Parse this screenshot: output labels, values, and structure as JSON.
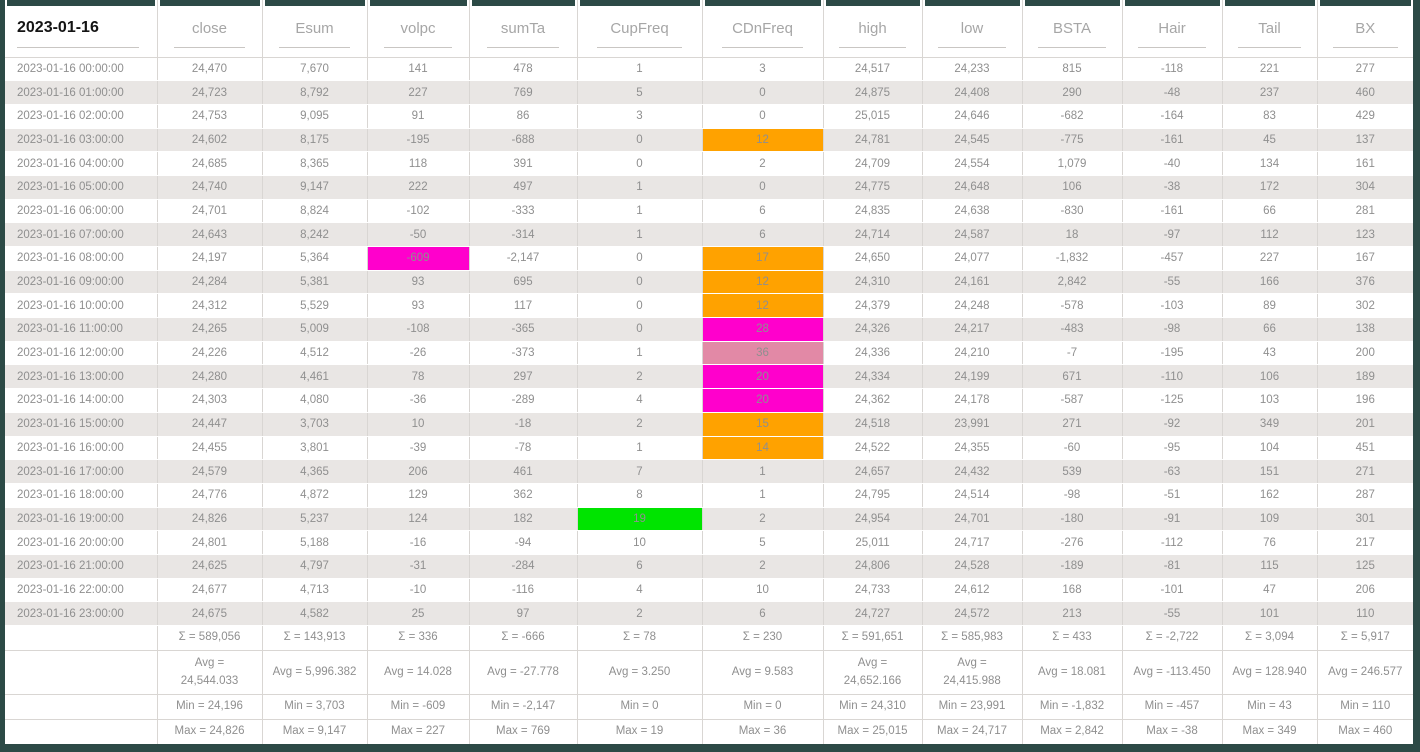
{
  "table": {
    "date_header": "2023-01-16",
    "columns": [
      "close",
      "Esum",
      "volpc",
      "sumTa",
      "CupFreq",
      "CDnFreq",
      "high",
      "low",
      "BSTA",
      "Hair",
      "Tail",
      "BX"
    ],
    "rows": [
      {
        "time": "2023-01-16 00:00:00",
        "cells": [
          "24,470",
          "7,670",
          "141",
          "478",
          "1",
          "3",
          "24,517",
          "24,233",
          "815",
          "-118",
          "221",
          "277"
        ]
      },
      {
        "time": "2023-01-16 01:00:00",
        "cells": [
          "24,723",
          "8,792",
          "227",
          "769",
          "5",
          "0",
          "24,875",
          "24,408",
          "290",
          "-48",
          "237",
          "460"
        ]
      },
      {
        "time": "2023-01-16 02:00:00",
        "cells": [
          "24,753",
          "9,095",
          "91",
          "86",
          "3",
          "0",
          "25,015",
          "24,646",
          "-682",
          "-164",
          "83",
          "429"
        ]
      },
      {
        "time": "2023-01-16 03:00:00",
        "cells": [
          "24,602",
          "8,175",
          "-195",
          "-688",
          "0",
          "12",
          "24,781",
          "24,545",
          "-775",
          "-161",
          "45",
          "137"
        ],
        "highlights": {
          "5": "orange"
        }
      },
      {
        "time": "2023-01-16 04:00:00",
        "cells": [
          "24,685",
          "8,365",
          "118",
          "391",
          "0",
          "2",
          "24,709",
          "24,554",
          "1,079",
          "-40",
          "134",
          "161"
        ]
      },
      {
        "time": "2023-01-16 05:00:00",
        "cells": [
          "24,740",
          "9,147",
          "222",
          "497",
          "1",
          "0",
          "24,775",
          "24,648",
          "106",
          "-38",
          "172",
          "304"
        ]
      },
      {
        "time": "2023-01-16 06:00:00",
        "cells": [
          "24,701",
          "8,824",
          "-102",
          "-333",
          "1",
          "6",
          "24,835",
          "24,638",
          "-830",
          "-161",
          "66",
          "281"
        ]
      },
      {
        "time": "2023-01-16 07:00:00",
        "cells": [
          "24,643",
          "8,242",
          "-50",
          "-314",
          "1",
          "6",
          "24,714",
          "24,587",
          "18",
          "-97",
          "112",
          "123"
        ]
      },
      {
        "time": "2023-01-16 08:00:00",
        "cells": [
          "24,197",
          "5,364",
          "-609",
          "-2,147",
          "0",
          "17",
          "24,650",
          "24,077",
          "-1,832",
          "-457",
          "227",
          "167"
        ],
        "highlights": {
          "2": "magenta",
          "5": "orange"
        }
      },
      {
        "time": "2023-01-16 09:00:00",
        "cells": [
          "24,284",
          "5,381",
          "93",
          "695",
          "0",
          "12",
          "24,310",
          "24,161",
          "2,842",
          "-55",
          "166",
          "376"
        ],
        "highlights": {
          "5": "orange"
        }
      },
      {
        "time": "2023-01-16 10:00:00",
        "cells": [
          "24,312",
          "5,529",
          "93",
          "117",
          "0",
          "12",
          "24,379",
          "24,248",
          "-578",
          "-103",
          "89",
          "302"
        ],
        "highlights": {
          "5": "orange"
        }
      },
      {
        "time": "2023-01-16 11:00:00",
        "cells": [
          "24,265",
          "5,009",
          "-108",
          "-365",
          "0",
          "28",
          "24,326",
          "24,217",
          "-483",
          "-98",
          "66",
          "138"
        ],
        "highlights": {
          "5": "magenta"
        }
      },
      {
        "time": "2023-01-16 12:00:00",
        "cells": [
          "24,226",
          "4,512",
          "-26",
          "-373",
          "1",
          "36",
          "24,336",
          "24,210",
          "-7",
          "-195",
          "43",
          "200"
        ],
        "highlights": {
          "5": "pink"
        }
      },
      {
        "time": "2023-01-16 13:00:00",
        "cells": [
          "24,280",
          "4,461",
          "78",
          "297",
          "2",
          "20",
          "24,334",
          "24,199",
          "671",
          "-110",
          "106",
          "189"
        ],
        "highlights": {
          "5": "magenta"
        }
      },
      {
        "time": "2023-01-16 14:00:00",
        "cells": [
          "24,303",
          "4,080",
          "-36",
          "-289",
          "4",
          "20",
          "24,362",
          "24,178",
          "-587",
          "-125",
          "103",
          "196"
        ],
        "highlights": {
          "5": "magenta"
        }
      },
      {
        "time": "2023-01-16 15:00:00",
        "cells": [
          "24,447",
          "3,703",
          "10",
          "-18",
          "2",
          "15",
          "24,518",
          "23,991",
          "271",
          "-92",
          "349",
          "201"
        ],
        "highlights": {
          "5": "orange"
        }
      },
      {
        "time": "2023-01-16 16:00:00",
        "cells": [
          "24,455",
          "3,801",
          "-39",
          "-78",
          "1",
          "14",
          "24,522",
          "24,355",
          "-60",
          "-95",
          "104",
          "451"
        ],
        "highlights": {
          "5": "orange"
        }
      },
      {
        "time": "2023-01-16 17:00:00",
        "cells": [
          "24,579",
          "4,365",
          "206",
          "461",
          "7",
          "1",
          "24,657",
          "24,432",
          "539",
          "-63",
          "151",
          "271"
        ]
      },
      {
        "time": "2023-01-16 18:00:00",
        "cells": [
          "24,776",
          "4,872",
          "129",
          "362",
          "8",
          "1",
          "24,795",
          "24,514",
          "-98",
          "-51",
          "162",
          "287"
        ]
      },
      {
        "time": "2023-01-16 19:00:00",
        "cells": [
          "24,826",
          "5,237",
          "124",
          "182",
          "19",
          "2",
          "24,954",
          "24,701",
          "-180",
          "-91",
          "109",
          "301"
        ],
        "highlights": {
          "4": "green"
        }
      },
      {
        "time": "2023-01-16 20:00:00",
        "cells": [
          "24,801",
          "5,188",
          "-16",
          "-94",
          "10",
          "5",
          "25,011",
          "24,717",
          "-276",
          "-112",
          "76",
          "217"
        ]
      },
      {
        "time": "2023-01-16 21:00:00",
        "cells": [
          "24,625",
          "4,797",
          "-31",
          "-284",
          "6",
          "2",
          "24,806",
          "24,528",
          "-189",
          "-81",
          "115",
          "125"
        ]
      },
      {
        "time": "2023-01-16 22:00:00",
        "cells": [
          "24,677",
          "4,713",
          "-10",
          "-116",
          "4",
          "10",
          "24,733",
          "24,612",
          "168",
          "-101",
          "47",
          "206"
        ]
      },
      {
        "time": "2023-01-16 23:00:00",
        "cells": [
          "24,675",
          "4,582",
          "25",
          "97",
          "2",
          "6",
          "24,727",
          "24,572",
          "213",
          "-55",
          "101",
          "110"
        ]
      }
    ],
    "summary_rows": [
      {
        "name": "sum",
        "cells": [
          "Σ = 589,056",
          "Σ = 143,913",
          "Σ = 336",
          "Σ = -666",
          "Σ = 78",
          "Σ = 230",
          "Σ = 591,651",
          "Σ = 585,983",
          "Σ = 433",
          "Σ = -2,722",
          "Σ = 3,094",
          "Σ = 5,917"
        ]
      },
      {
        "name": "avg",
        "cells": [
          "Avg =\n24,544.033",
          "Avg = 5,996.382",
          "Avg = 14.028",
          "Avg = -27.778",
          "Avg = 3.250",
          "Avg = 9.583",
          "Avg =\n24,652.166",
          "Avg =\n24,415.988",
          "Avg = 18.081",
          "Avg = -113.450",
          "Avg = 128.940",
          "Avg = 246.577"
        ]
      },
      {
        "name": "min",
        "cells": [
          "Min = 24,196",
          "Min = 3,703",
          "Min = -609",
          "Min = -2,147",
          "Min = 0",
          "Min = 0",
          "Min = 24,310",
          "Min = 23,991",
          "Min = -1,832",
          "Min = -457",
          "Min = 43",
          "Min = 110"
        ]
      },
      {
        "name": "max",
        "cells": [
          "Max = 24,826",
          "Max = 9,147",
          "Max = 227",
          "Max = 769",
          "Max = 19",
          "Max = 36",
          "Max = 25,015",
          "Max = 24,717",
          "Max = 2,842",
          "Max = -38",
          "Max = 349",
          "Max = 460"
        ]
      }
    ]
  },
  "colors": {
    "frame": "#2c4a46",
    "row_alt": "#e9e6e4",
    "highlight_orange": "#ffa200",
    "highlight_magenta": "#ff00cc",
    "highlight_pink": "#e289a6",
    "highlight_green": "#00e400"
  }
}
